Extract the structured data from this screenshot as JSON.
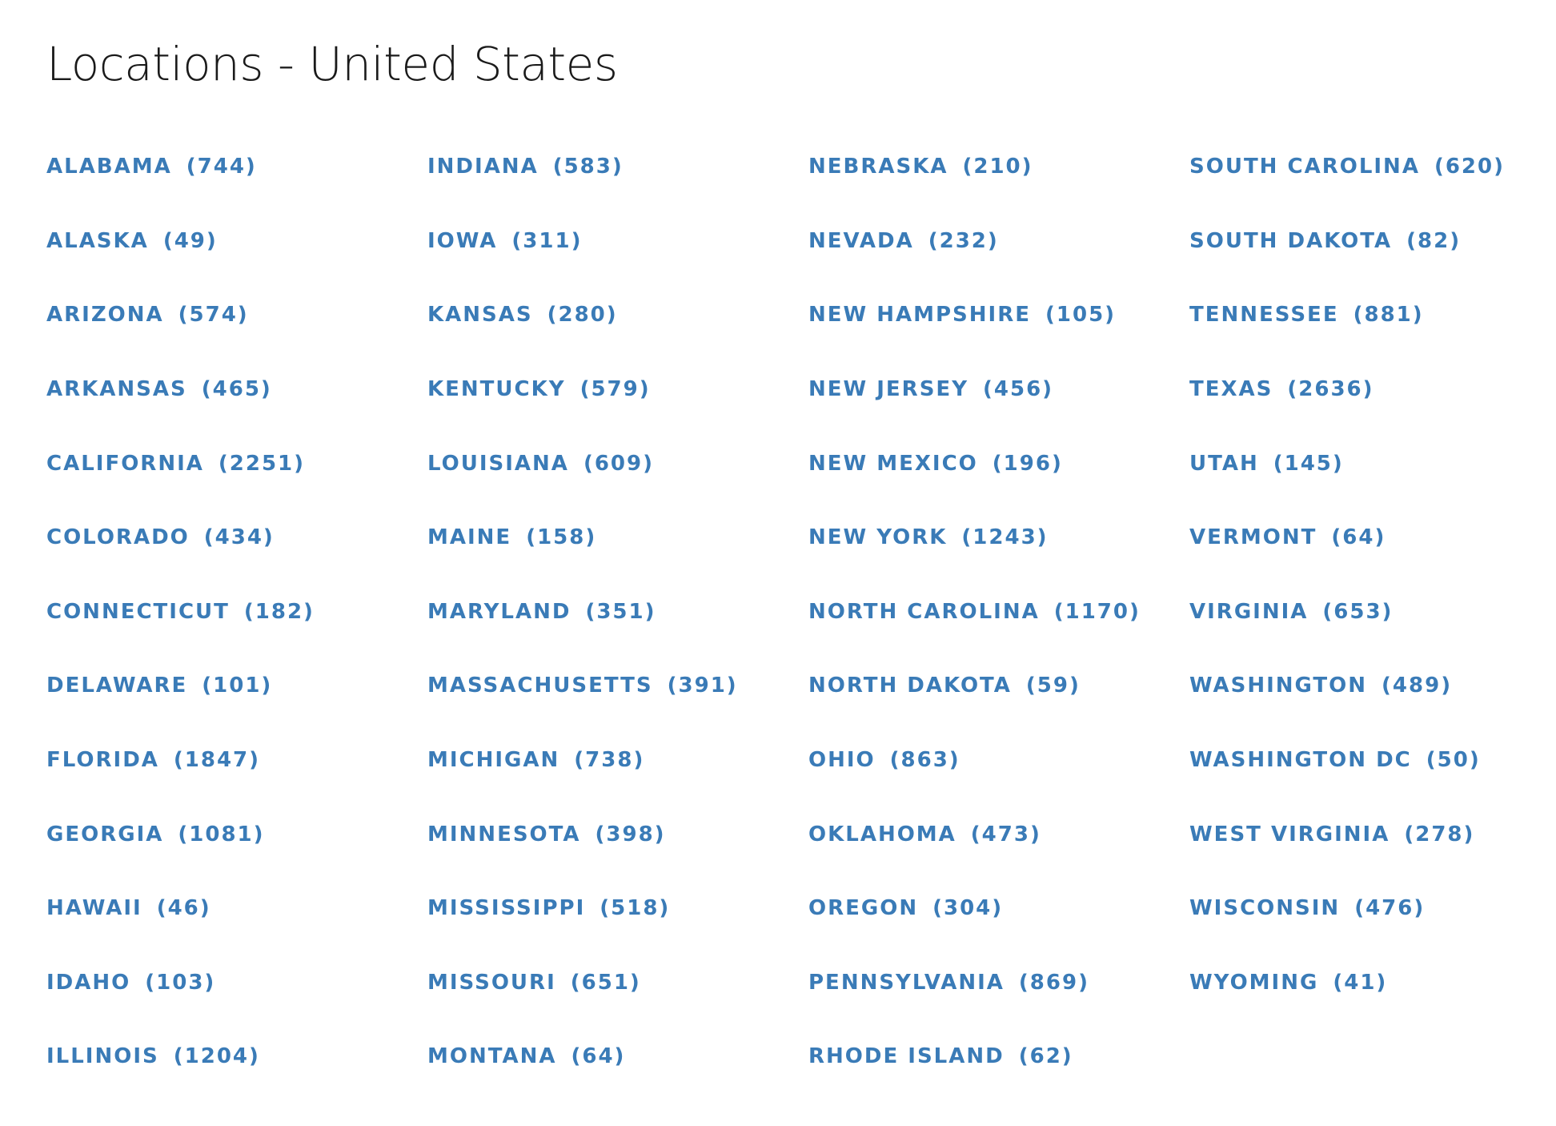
{
  "page": {
    "title": "Locations - United States"
  },
  "states": [
    {
      "name": "ALABAMA",
      "count": "(744)"
    },
    {
      "name": "ALASKA",
      "count": "(49)"
    },
    {
      "name": "ARIZONA",
      "count": "(574)"
    },
    {
      "name": "ARKANSAS",
      "count": "(465)"
    },
    {
      "name": "CALIFORNIA",
      "count": "(2251)"
    },
    {
      "name": "COLORADO",
      "count": "(434)"
    },
    {
      "name": "CONNECTICUT",
      "count": "(182)"
    },
    {
      "name": "DELAWARE",
      "count": "(101)"
    },
    {
      "name": "FLORIDA",
      "count": "(1847)"
    },
    {
      "name": "GEORGIA",
      "count": "(1081)"
    },
    {
      "name": "HAWAII",
      "count": "(46)"
    },
    {
      "name": "IDAHO",
      "count": "(103)"
    },
    {
      "name": "ILLINOIS",
      "count": "(1204)"
    },
    {
      "name": "INDIANA",
      "count": "(583)"
    },
    {
      "name": "IOWA",
      "count": "(311)"
    },
    {
      "name": "KANSAS",
      "count": "(280)"
    },
    {
      "name": "KENTUCKY",
      "count": "(579)"
    },
    {
      "name": "LOUISIANA",
      "count": "(609)"
    },
    {
      "name": "MAINE",
      "count": "(158)"
    },
    {
      "name": "MARYLAND",
      "count": "(351)"
    },
    {
      "name": "MASSACHUSETTS",
      "count": "(391)"
    },
    {
      "name": "MICHIGAN",
      "count": "(738)"
    },
    {
      "name": "MINNESOTA",
      "count": "(398)"
    },
    {
      "name": "MISSISSIPPI",
      "count": "(518)"
    },
    {
      "name": "MISSOURI",
      "count": "(651)"
    },
    {
      "name": "MONTANA",
      "count": "(64)"
    },
    {
      "name": "NEBRASKA",
      "count": "(210)"
    },
    {
      "name": "NEVADA",
      "count": "(232)"
    },
    {
      "name": "NEW HAMPSHIRE",
      "count": "(105)"
    },
    {
      "name": "NEW JERSEY",
      "count": "(456)"
    },
    {
      "name": "NEW MEXICO",
      "count": "(196)"
    },
    {
      "name": "NEW YORK",
      "count": "(1243)"
    },
    {
      "name": "NORTH CAROLINA",
      "count": "(1170)"
    },
    {
      "name": "NORTH DAKOTA",
      "count": "(59)"
    },
    {
      "name": "OHIO",
      "count": "(863)"
    },
    {
      "name": "OKLAHOMA",
      "count": "(473)"
    },
    {
      "name": "OREGON",
      "count": "(304)"
    },
    {
      "name": "PENNSYLVANIA",
      "count": "(869)"
    },
    {
      "name": "RHODE ISLAND",
      "count": "(62)"
    },
    {
      "name": "SOUTH CAROLINA",
      "count": "(620)"
    },
    {
      "name": "SOUTH DAKOTA",
      "count": "(82)"
    },
    {
      "name": "TENNESSEE",
      "count": "(881)"
    },
    {
      "name": "TEXAS",
      "count": "(2636)"
    },
    {
      "name": "UTAH",
      "count": "(145)"
    },
    {
      "name": "VERMONT",
      "count": "(64)"
    },
    {
      "name": "VIRGINIA",
      "count": "(653)"
    },
    {
      "name": "WASHINGTON",
      "count": "(489)"
    },
    {
      "name": "WASHINGTON DC",
      "count": "(50)"
    },
    {
      "name": "WEST VIRGINIA",
      "count": "(278)"
    },
    {
      "name": "WISCONSIN",
      "count": "(476)"
    },
    {
      "name": "WYOMING",
      "count": "(41)"
    }
  ],
  "colors": {
    "link": "#3a7bb7",
    "title": "#1a1a1a",
    "background": "#ffffff"
  }
}
